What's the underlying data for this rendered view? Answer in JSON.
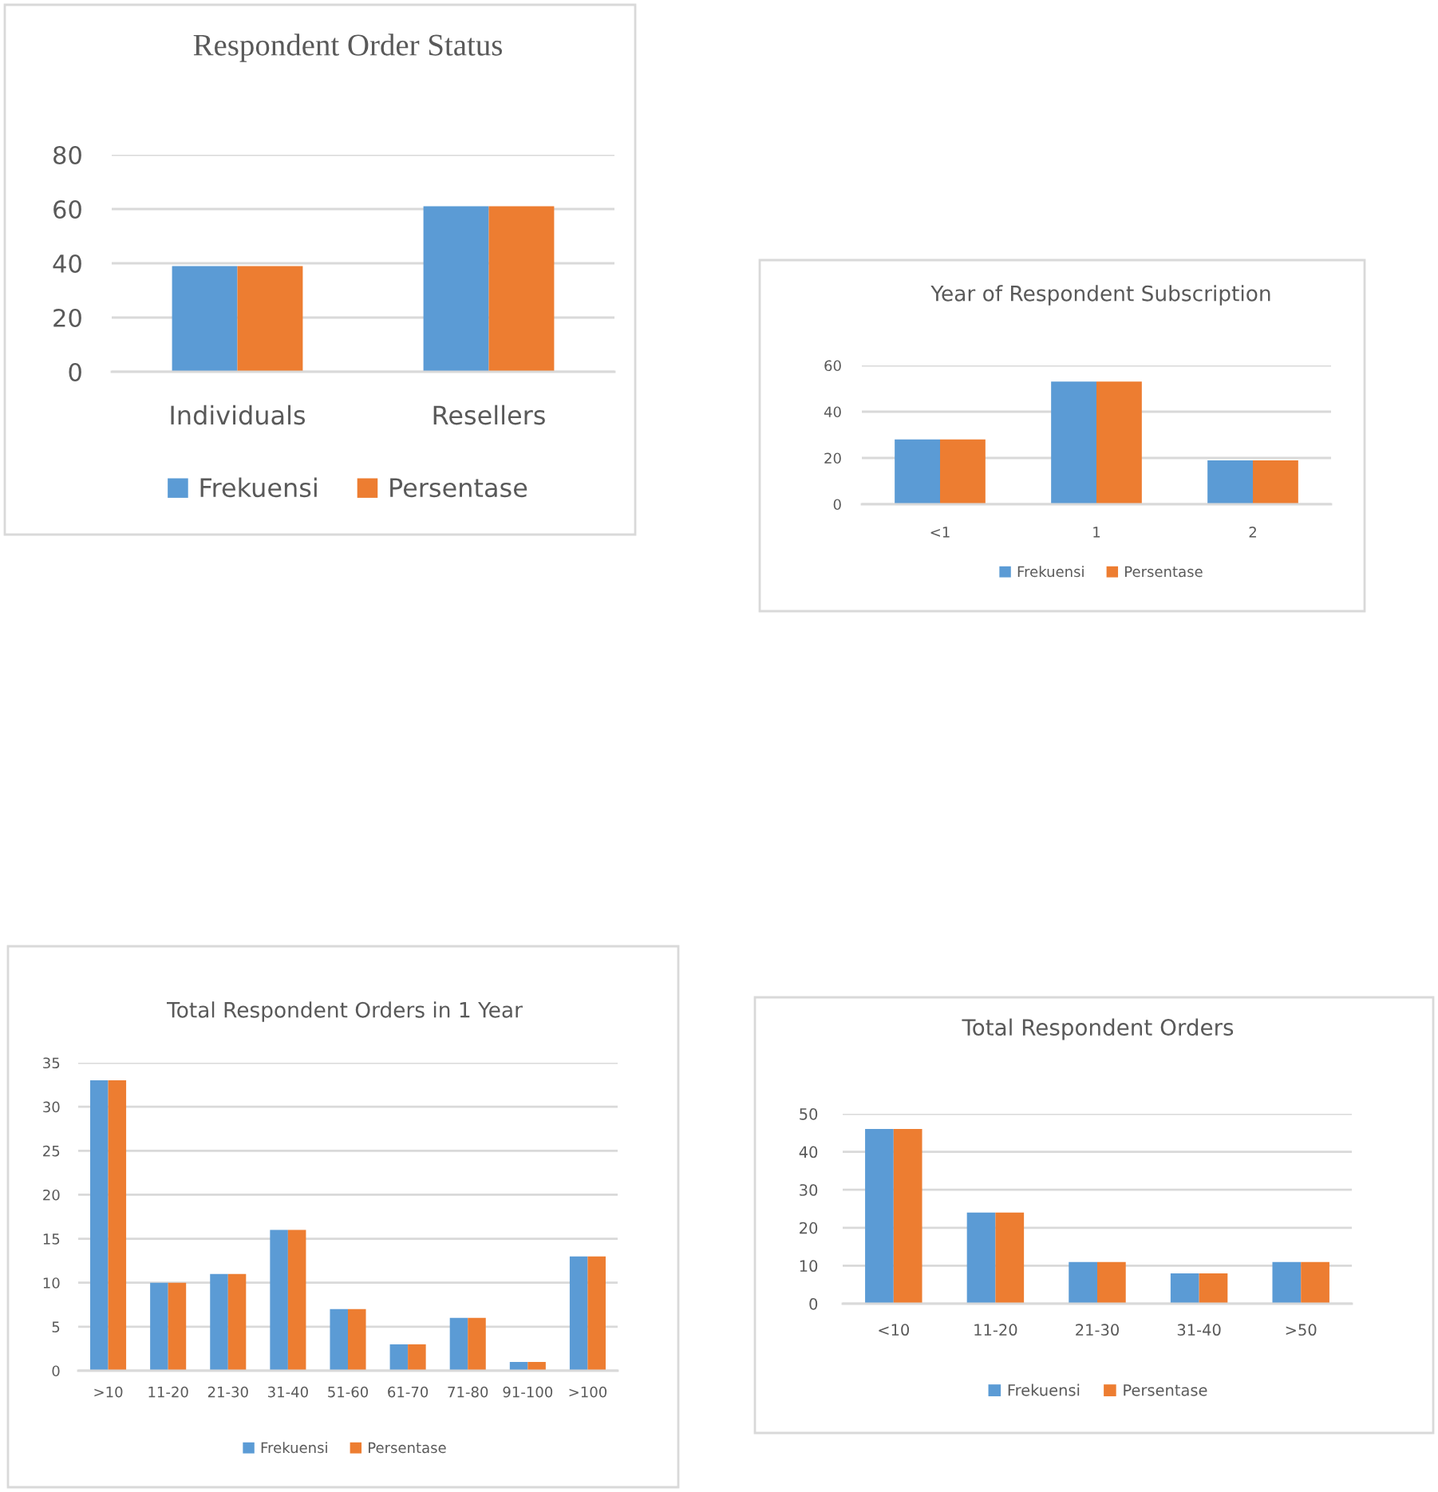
{
  "chart_data": [
    {
      "type": "bar",
      "title": "Respondent Order Status",
      "categories": [
        "Individuals",
        "Resellers"
      ],
      "series": [
        {
          "name": "Frekuensi",
          "color": "#5b9bd5",
          "values": [
            39,
            61
          ]
        },
        {
          "name": "Persentase",
          "color": "#ed7d31",
          "values": [
            39,
            61
          ]
        }
      ],
      "ylim": [
        0,
        80
      ],
      "yticks": [
        0,
        20,
        40,
        60,
        80
      ],
      "grid": "y",
      "legend": "bottom"
    },
    {
      "type": "bar",
      "title": "Year of Respondent Subscription",
      "categories": [
        "<1",
        "1",
        "2"
      ],
      "series": [
        {
          "name": "Frekuensi",
          "color": "#5b9bd5",
          "values": [
            28,
            53,
            19
          ]
        },
        {
          "name": "Persentase",
          "color": "#ed7d31",
          "values": [
            28,
            53,
            19
          ]
        }
      ],
      "ylim": [
        0,
        60
      ],
      "yticks": [
        0,
        20,
        40,
        60
      ],
      "grid": "y",
      "legend": "bottom"
    },
    {
      "type": "bar",
      "title": "Total Respondent Orders in 1 Year",
      "categories": [
        ">10",
        "11-20",
        "21-30",
        "31-40",
        "51-60",
        "61-70",
        "71-80",
        "91-100",
        ">100"
      ],
      "series": [
        {
          "name": "Frekuensi",
          "color": "#5b9bd5",
          "values": [
            33,
            10,
            11,
            16,
            7,
            3,
            6,
            1,
            13
          ]
        },
        {
          "name": "Persentase",
          "color": "#ed7d31",
          "values": [
            33,
            10,
            11,
            16,
            7,
            3,
            6,
            1,
            13
          ]
        }
      ],
      "ylim": [
        0,
        35
      ],
      "yticks": [
        0,
        5,
        10,
        15,
        20,
        25,
        30,
        35
      ],
      "grid": "y",
      "legend": "bottom"
    },
    {
      "type": "bar",
      "title": "Total Respondent Orders",
      "categories": [
        "<10",
        "11-20",
        "21-30",
        "31-40",
        ">50"
      ],
      "series": [
        {
          "name": "Frekuensi",
          "color": "#5b9bd5",
          "values": [
            46,
            24,
            11,
            8,
            11
          ]
        },
        {
          "name": "Persentase",
          "color": "#ed7d31",
          "values": [
            46,
            24,
            11,
            8,
            11
          ]
        }
      ],
      "ylim": [
        0,
        50
      ],
      "yticks": [
        0,
        10,
        20,
        30,
        40,
        50
      ],
      "grid": "y",
      "legend": "bottom"
    }
  ]
}
